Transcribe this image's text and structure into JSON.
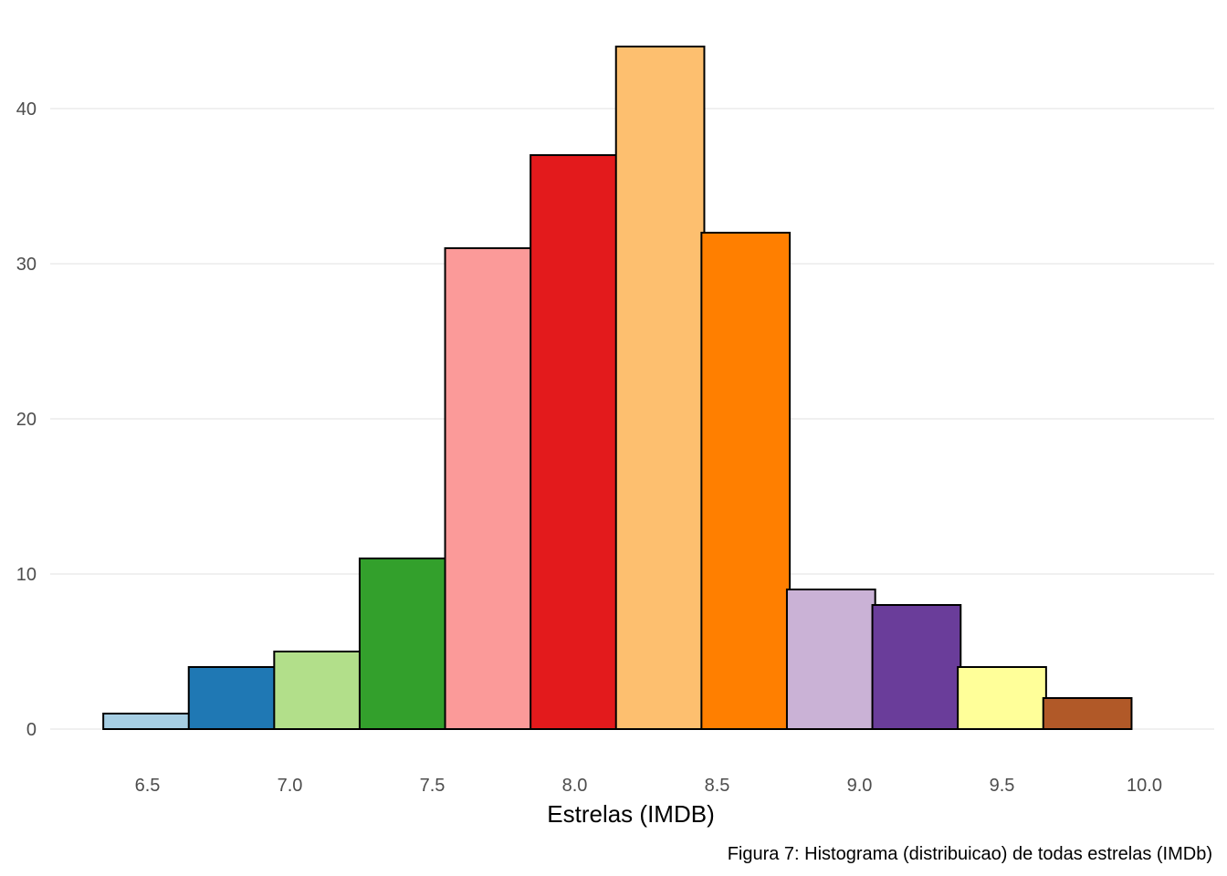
{
  "chart_data": {
    "type": "bar",
    "subtype": "histogram",
    "bins": [
      {
        "center": 6.5,
        "count": 1
      },
      {
        "center": 6.8,
        "count": 4
      },
      {
        "center": 7.1,
        "count": 5
      },
      {
        "center": 7.4,
        "count": 11
      },
      {
        "center": 7.7,
        "count": 31
      },
      {
        "center": 8.0,
        "count": 37
      },
      {
        "center": 8.3,
        "count": 44
      },
      {
        "center": 8.6,
        "count": 32
      },
      {
        "center": 8.9,
        "count": 9
      },
      {
        "center": 9.2,
        "count": 8
      },
      {
        "center": 9.5,
        "count": 4
      },
      {
        "center": 9.8,
        "count": 2
      }
    ],
    "bin_width": 0.31,
    "colors": [
      "#A6CEE3",
      "#1F78B4",
      "#B2DF8A",
      "#33A02C",
      "#FB9A99",
      "#E31A1C",
      "#FDBF6F",
      "#FF7F00",
      "#CAB2D6",
      "#6A3D9A",
      "#FFFF99",
      "#B15928"
    ],
    "xlabel": "Estrelas (IMDB)",
    "ylabel": "",
    "x_ticks": [
      "6.5",
      "7.0",
      "7.5",
      "8.0",
      "8.5",
      "9.0",
      "9.5",
      "10.0"
    ],
    "y_ticks": [
      "0",
      "10",
      "20",
      "30",
      "40"
    ],
    "xlim": [
      6.15,
      10.2
    ],
    "ylim": [
      0,
      46
    ],
    "grid": true,
    "legend": "none",
    "caption": "Figura 7: Histograma (distribuicao) de todas estrelas (IMDb)"
  }
}
